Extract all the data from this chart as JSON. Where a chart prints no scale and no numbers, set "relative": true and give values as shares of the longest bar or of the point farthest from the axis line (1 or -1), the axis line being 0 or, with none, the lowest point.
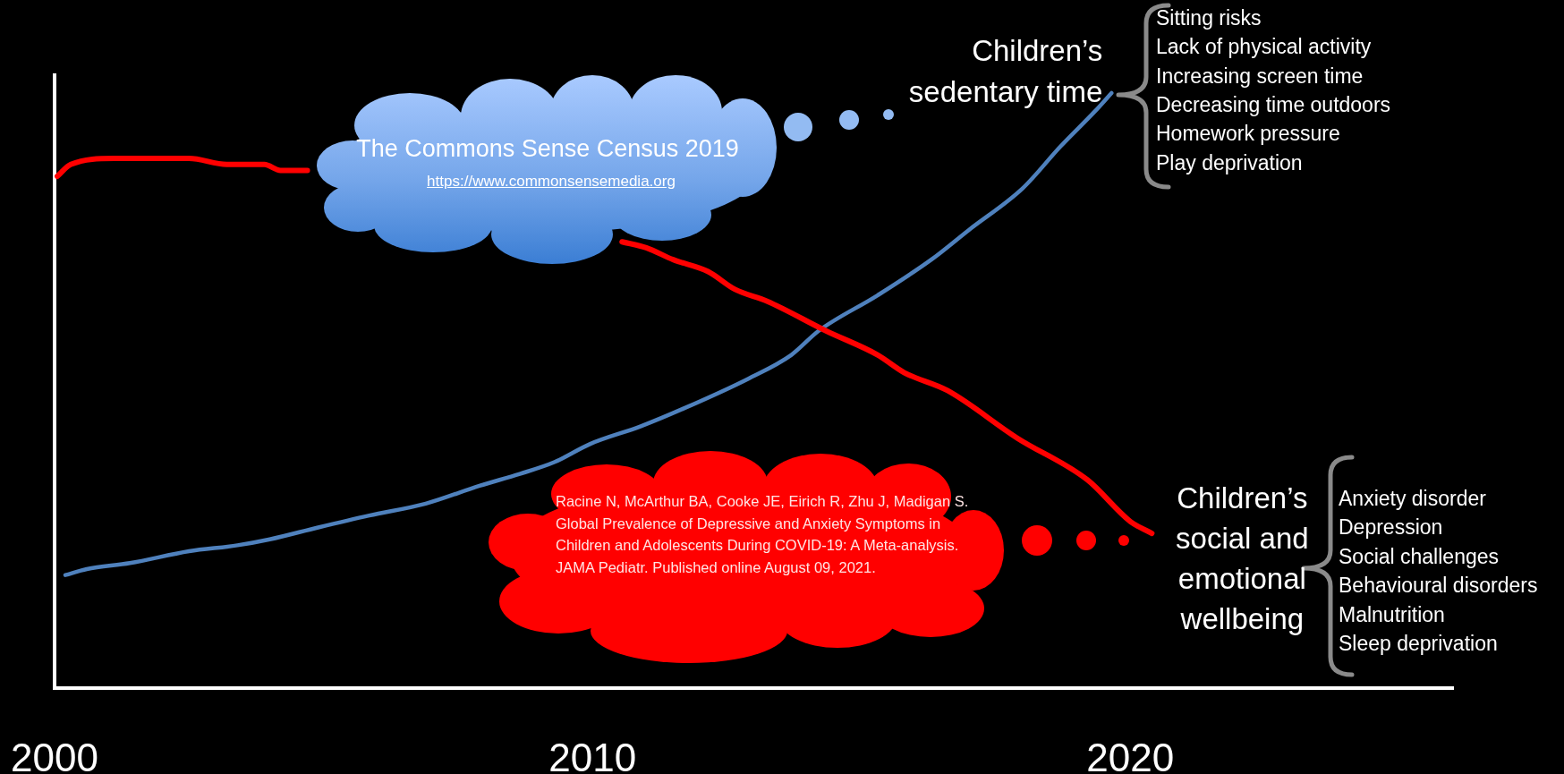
{
  "chart_data": {
    "type": "line",
    "relative": true,
    "xlim": [
      2000,
      2026
    ],
    "xticks": [
      2000,
      2010,
      2020
    ],
    "series": [
      {
        "name": "Children’s social and emotional wellbeing",
        "color": "#ff0000",
        "x": [
          2000.05,
          2000.3,
          2001.1,
          2002.5,
          2003.2,
          2003.9,
          2004.2,
          2004.7,
          2007.5,
          2010.55,
          2011.0,
          2011.5,
          2012.15,
          2012.65,
          2013.25,
          2014.35,
          2015.3,
          2015.8,
          2016.6,
          2017.9,
          2019.2,
          2020.0,
          2020.4
        ],
        "values": [
          0.86,
          0.88,
          0.89,
          0.89,
          0.88,
          0.88,
          0.87,
          0.87,
          null,
          0.75,
          0.74,
          0.72,
          0.7,
          0.67,
          0.65,
          0.6,
          0.56,
          0.53,
          0.5,
          0.42,
          0.35,
          0.28,
          0.26
        ]
      },
      {
        "name": "Children’s sedentary time",
        "color": "#4f81bd",
        "x": [
          2000.2,
          2000.6,
          2001.4,
          2002.5,
          2003.4,
          2004.0,
          2004.9,
          2005.85,
          2006.9,
          2007.9,
          2008.65,
          2009.3,
          2009.95,
          2010.9,
          2011.7,
          2012.9,
          2013.7,
          2014.2,
          2015.3,
          2016.3,
          2017.0,
          2018.0,
          2018.7,
          2019.35,
          2019.65
        ],
        "values": [
          0.19,
          0.2,
          0.21,
          0.23,
          0.24,
          0.25,
          0.27,
          0.29,
          0.31,
          0.34,
          0.36,
          0.38,
          0.41,
          0.44,
          0.47,
          0.52,
          0.56,
          0.6,
          0.66,
          0.72,
          0.77,
          0.84,
          0.91,
          0.97,
          1.0
        ]
      }
    ],
    "annotations": [
      "The Commons Sense Census 2019",
      "https://www.commonsensemedia.org",
      "Sitting risks\nLack of physical activity\nIncreasing screen time\nDecreasing time outdoors\nHomework pressure\nPlay deprivation",
      "Racine N, McArthur BA, Cooke JE, Eirich R, Zhu J, Madigan S. Global Prevalence of Depressive and Anxiety Symptoms in Children and Adolescents During COVID-19: A Meta-analysis. JAMA Pediatr. Published online August 09, 2021.",
      "Anxiety disorder\nDepression\nSocial challenges\nBehavioural disorders\nMalnutrition\nSleep deprivation"
    ]
  }
}
